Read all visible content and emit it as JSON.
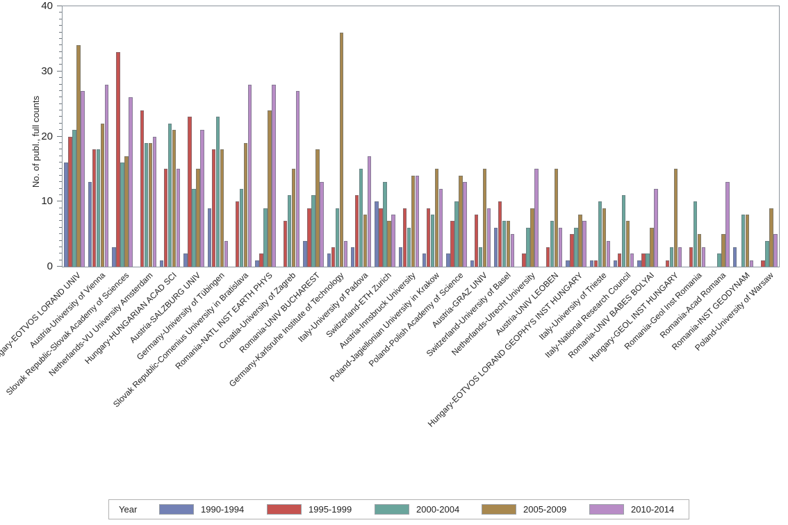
{
  "chart_data": {
    "type": "bar",
    "title": "",
    "xlabel": "",
    "ylabel": "No. of publ., full counts",
    "ylim": [
      0,
      40
    ],
    "yticks_major": [
      0,
      10,
      20,
      30,
      40
    ],
    "minor_tick_step": 1,
    "grid": false,
    "legend_title": "Year",
    "legend_position": "bottom",
    "categories": [
      "Hungary-EOTVOS LORAND UNIV",
      "Austria-University of Vienna",
      "Slovak Republic-Slovak Academy of Sciences",
      "Netherlands-VU University Amsterdam",
      "Hungary-HUNGARIAN ACAD SCI",
      "Austria-SALZBURG UNIV",
      "Germany-University of Tübingen",
      "Slovak Republic-Comenius University in Bratislava",
      "Romania-NATL INST EARTH PHYS",
      "Croatia-University of Zagreb",
      "Romania-UNIV BUCHAREST",
      "Germany-Karlsruhe Institute of Technology",
      "Italy-University of Padova",
      "Switzerland-ETH Zurich",
      "Austria-Innsbruck University",
      "Poland-Jagiellonian University in Krakow",
      "Poland-Polish Academy of Science",
      "Austria-GRAZ UNIV",
      "Switzerland-University of Basel",
      "Netherlands-Utrecht University",
      "Austria-UNIV LEOBEN",
      "Hungary-EOTVOS LORAND GEOPHYS INST HUNGARY",
      "Italy-University of Trieste",
      "Italy-National Research Council",
      "Romania-UNIV BABES BOLYAI",
      "Hungary-GEOL INST HUNGARY",
      "Romania-Geol Inst Romania",
      "Romania-Acad Romana",
      "Romania-INST GEODYNAM",
      "Poland-University of Warsaw"
    ],
    "series": [
      {
        "name": "1990-1994",
        "color": "#7381b5",
        "values": [
          16,
          13,
          3,
          0,
          1,
          2,
          9,
          0,
          1,
          0,
          4,
          2,
          3,
          10,
          3,
          2,
          2,
          1,
          6,
          0,
          0,
          1,
          1,
          1,
          1,
          0,
          0,
          0,
          3,
          0
        ]
      },
      {
        "name": "1995-1999",
        "color": "#c55350",
        "values": [
          20,
          18,
          33,
          24,
          15,
          23,
          18,
          10,
          2,
          7,
          9,
          3,
          11,
          9,
          9,
          9,
          7,
          8,
          10,
          2,
          3,
          5,
          1,
          2,
          2,
          1,
          3,
          0,
          0,
          1
        ]
      },
      {
        "name": "2000-2004",
        "color": "#6aa59c",
        "values": [
          21,
          18,
          16,
          19,
          22,
          12,
          23,
          12,
          9,
          11,
          11,
          9,
          15,
          13,
          6,
          8,
          10,
          3,
          7,
          6,
          7,
          6,
          10,
          11,
          2,
          3,
          10,
          2,
          8,
          4
        ]
      },
      {
        "name": "2005-2009",
        "color": "#a8884f",
        "values": [
          34,
          22,
          17,
          19,
          21,
          15,
          18,
          19,
          24,
          15,
          18,
          36,
          8,
          7,
          14,
          15,
          14,
          15,
          7,
          9,
          15,
          8,
          9,
          7,
          6,
          15,
          5,
          5,
          8,
          9
        ]
      },
      {
        "name": "2010-2014",
        "color": "#b88cc6",
        "values": [
          27,
          28,
          26,
          20,
          15,
          21,
          4,
          28,
          28,
          27,
          13,
          4,
          17,
          8,
          14,
          12,
          13,
          9,
          5,
          15,
          6,
          7,
          4,
          2,
          12,
          3,
          3,
          13,
          1,
          5
        ]
      }
    ]
  },
  "colors": {
    "frame": "#8b949c",
    "tick": "#6e767d",
    "text": "#1f1f1f",
    "legend_border": "#b1b1b1"
  }
}
